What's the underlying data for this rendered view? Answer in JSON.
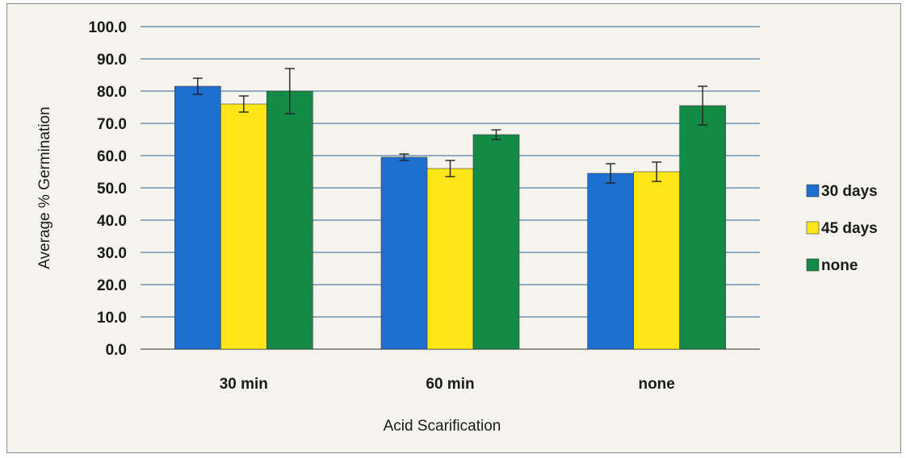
{
  "chart_data": {
    "type": "bar",
    "title": "",
    "xlabel": "Acid Scarification",
    "ylabel": "Average % Germination",
    "categories": [
      "30 min",
      "60 min",
      "none"
    ],
    "series": [
      {
        "name": "30 days",
        "color": "#1f6fd1",
        "values": [
          81.5,
          59.5,
          54.5
        ],
        "errors": [
          2.5,
          1.0,
          3.0
        ]
      },
      {
        "name": "45 days",
        "color": "#ffe619",
        "values": [
          76.0,
          56.0,
          55.0
        ],
        "errors": [
          2.5,
          2.5,
          3.0
        ]
      },
      {
        "name": "none",
        "color": "#138a45",
        "values": [
          80.0,
          66.5,
          75.5
        ],
        "errors": [
          7.0,
          1.5,
          6.0
        ]
      }
    ],
    "ylim": [
      0,
      100
    ],
    "yticks": [
      "0.0",
      "10.0",
      "20.0",
      "30.0",
      "40.0",
      "50.0",
      "60.0",
      "70.0",
      "80.0",
      "90.0",
      "100.0"
    ],
    "ytick_values": [
      0,
      10,
      20,
      30,
      40,
      50,
      60,
      70,
      80,
      90,
      100
    ],
    "grid": true,
    "legend_position": "right",
    "error_bars": true
  }
}
